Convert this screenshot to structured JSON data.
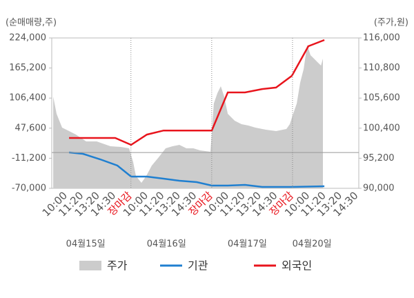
{
  "chart_data": {
    "type": "line",
    "y_label": "(순매매량,주)",
    "y2_label": "(주가,원)",
    "ylim": [
      -70000,
      224000
    ],
    "yticks": [
      {
        "value": -70000,
        "label": "-70,000"
      },
      {
        "value": -11200,
        "label": "-11,200"
      },
      {
        "value": 47600,
        "label": "47,600"
      },
      {
        "value": 106400,
        "label": "106,400"
      },
      {
        "value": 165200,
        "label": "165,200"
      },
      {
        "value": 224000,
        "label": "224,000"
      }
    ],
    "y2lim": [
      90000,
      116000
    ],
    "y2ticks": [
      {
        "value": 90000,
        "label": "90,000"
      },
      {
        "value": 95200,
        "label": "95,200"
      },
      {
        "value": 100400,
        "label": "100,400"
      },
      {
        "value": 105600,
        "label": "105,600"
      },
      {
        "value": 110800,
        "label": "110,800"
      },
      {
        "value": 116000,
        "label": "116,000"
      }
    ],
    "xlim": [
      -0.6,
      18.4
    ],
    "xticks": [
      {
        "value": 0,
        "label": "10:00"
      },
      {
        "value": 1,
        "label": "11:20"
      },
      {
        "value": 2,
        "label": "13:20"
      },
      {
        "value": 3,
        "label": "14:30"
      },
      {
        "value": 4,
        "label": "장마감"
      },
      {
        "value": 5,
        "label": "10:00"
      },
      {
        "value": 6,
        "label": "11:20"
      },
      {
        "value": 7,
        "label": "13:20"
      },
      {
        "value": 8,
        "label": "14:30"
      },
      {
        "value": 9,
        "label": "장마감"
      },
      {
        "value": 10,
        "label": "10:00"
      },
      {
        "value": 11,
        "label": "11:20"
      },
      {
        "value": 12,
        "label": "13:20"
      },
      {
        "value": 13,
        "label": "14:30"
      },
      {
        "value": 14,
        "label": "장마감"
      },
      {
        "value": 15,
        "label": "10:00"
      },
      {
        "value": 16,
        "label": "11:20"
      },
      {
        "value": 17,
        "label": "13:20"
      },
      {
        "value": 18,
        "label": "14:30"
      }
    ],
    "dates": [
      "04월15일",
      "04월16일",
      "04월17일",
      "04월20일"
    ],
    "series": [
      {
        "name": "주가",
        "color": "#cccccc",
        "axis": "y2",
        "style": "area",
        "x": [
          -0.51,
          -0.3,
          0.04,
          0.47,
          0.89,
          1.53,
          2.18,
          3.03,
          3.67,
          4.18,
          4.44,
          4.61,
          4.95,
          5.25,
          5.59,
          6.02,
          6.45,
          6.87,
          7.3,
          7.73,
          8.16,
          8.58,
          9.22,
          9.43,
          9.65,
          9.86,
          10.07,
          10.29,
          10.72,
          11.14,
          11.57,
          12.0,
          12.64,
          13.28,
          13.92,
          14.13,
          14.34,
          14.56,
          14.77,
          14.99,
          15.2,
          15.41,
          15.63,
          15.84,
          16.06,
          16.18
        ],
        "values": [
          105860,
          102880,
          100500,
          99900,
          99300,
          98110,
          98110,
          97280,
          97160,
          96920,
          94530,
          92150,
          90950,
          92150,
          93940,
          95370,
          96920,
          97280,
          97510,
          96920,
          96920,
          96560,
          96320,
          104670,
          106460,
          107650,
          105860,
          102880,
          101690,
          101090,
          100850,
          100500,
          100140,
          99900,
          100260,
          101090,
          102880,
          104670,
          108250,
          110630,
          114810,
          113020,
          112420,
          111830,
          111230,
          112420
        ]
      },
      {
        "name": "기관",
        "color": "#1f7fd0",
        "style": "line",
        "x": [
          0.47,
          1.33,
          2.4,
          3.46,
          4.31,
          5.29,
          6.32,
          7.3,
          8.37,
          9.3,
          10.29,
          11.36,
          12.42,
          14.26,
          16.27
        ],
        "values": [
          128,
          -2570,
          -13360,
          -25500,
          -47070,
          -47070,
          -51120,
          -55170,
          -57870,
          -64600,
          -64600,
          -63260,
          -67300,
          -67300,
          -65950
        ]
      },
      {
        "name": "외국인",
        "color": "#e8141c",
        "style": "line",
        "x": [
          0.47,
          3.33,
          4.31,
          5.29,
          6.32,
          9.3,
          10.29,
          11.36,
          12.42,
          13.28,
          14.26,
          15.28,
          16.27
        ],
        "values": [
          28450,
          28450,
          14960,
          35000,
          43000,
          43000,
          117500,
          117500,
          124000,
          127000,
          150000,
          207800,
          220000
        ]
      }
    ]
  }
}
